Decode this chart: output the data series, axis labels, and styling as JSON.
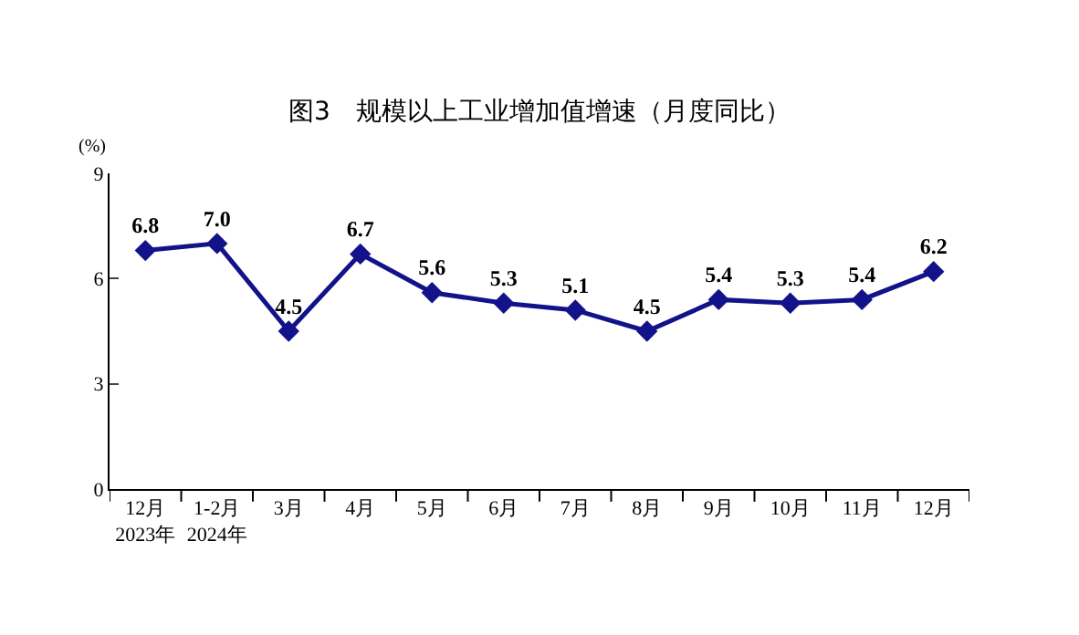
{
  "chart_data": {
    "type": "line",
    "title": "图3　规模以上工业增加值增速（月度同比）",
    "ylabel": "(%)",
    "categories": [
      "12月\n2023年",
      "1-2月\n2024年",
      "3月",
      "4月",
      "5月",
      "6月",
      "7月",
      "8月",
      "9月",
      "10月",
      "11月",
      "12月"
    ],
    "series": [
      {
        "color": "#12128a",
        "values": [
          6.8,
          7.0,
          4.5,
          6.7,
          5.6,
          5.3,
          5.1,
          4.5,
          5.4,
          5.3,
          5.4,
          6.2
        ],
        "value_labels": [
          "6.8",
          "7.0",
          "4.5",
          "6.7",
          "5.6",
          "5.3",
          "5.1",
          "4.5",
          "5.4",
          "5.3",
          "5.4",
          "6.2"
        ]
      }
    ],
    "ylim": [
      0,
      9
    ],
    "yticks": [
      0,
      3,
      6,
      9
    ],
    "legend": false,
    "marker": "diamond",
    "line_style": "solid"
  }
}
